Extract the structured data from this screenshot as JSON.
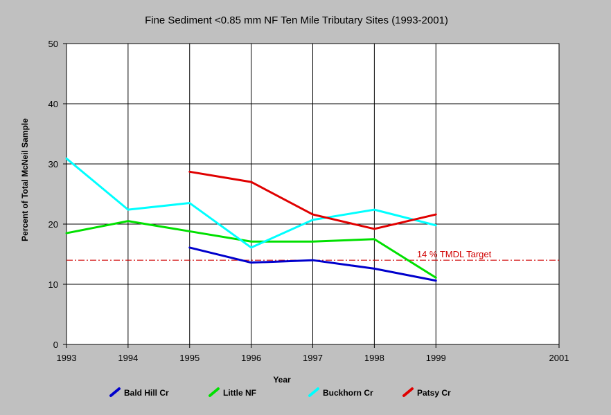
{
  "colors": {
    "background": "#c0c0c0",
    "plot_bg": "#ffffff",
    "grid": "#000000",
    "target_line": "#d00000"
  },
  "chart_data": {
    "type": "line",
    "title": "Fine Sediment <0.85 mm NF Ten Mile Tributary Sites (1993-2001)",
    "xlabel": "Year",
    "ylabel": "Percent of Total McNeil Sample",
    "xlim": [
      1993,
      2001
    ],
    "ylim": [
      0,
      50
    ],
    "x_ticks": [
      1993,
      1994,
      1995,
      1996,
      1997,
      1998,
      1999,
      2001
    ],
    "y_ticks": [
      0,
      10,
      20,
      30,
      40,
      50
    ],
    "grid": true,
    "legend_position": "bottom",
    "series": [
      {
        "name": "Bald Hill Cr",
        "color": "#0000cc",
        "x": [
          1995,
          1996,
          1997,
          1998,
          1999
        ],
        "y": [
          16.1,
          13.6,
          14.0,
          12.6,
          10.6
        ]
      },
      {
        "name": "Little NF",
        "color": "#00e000",
        "x": [
          1993,
          1994,
          1995,
          1996,
          1997,
          1998,
          1999
        ],
        "y": [
          18.5,
          20.5,
          18.8,
          17.1,
          17.1,
          17.5,
          11.1
        ]
      },
      {
        "name": "Buckhorn Cr",
        "color": "#00ffff",
        "x": [
          1993,
          1994,
          1995,
          1996,
          1997,
          1998,
          1999
        ],
        "y": [
          30.9,
          22.4,
          23.5,
          16.1,
          20.7,
          22.4,
          19.8
        ]
      },
      {
        "name": "Patsy Cr",
        "color": "#e00000",
        "x": [
          1995,
          1996,
          1997,
          1998,
          1999
        ],
        "y": [
          28.7,
          27.0,
          21.6,
          19.2,
          21.6
        ]
      }
    ],
    "annotations": [
      {
        "type": "hline",
        "y": 14,
        "label": "14 % TMDL Target",
        "color": "#d00000",
        "style": "dash-dot"
      }
    ]
  }
}
